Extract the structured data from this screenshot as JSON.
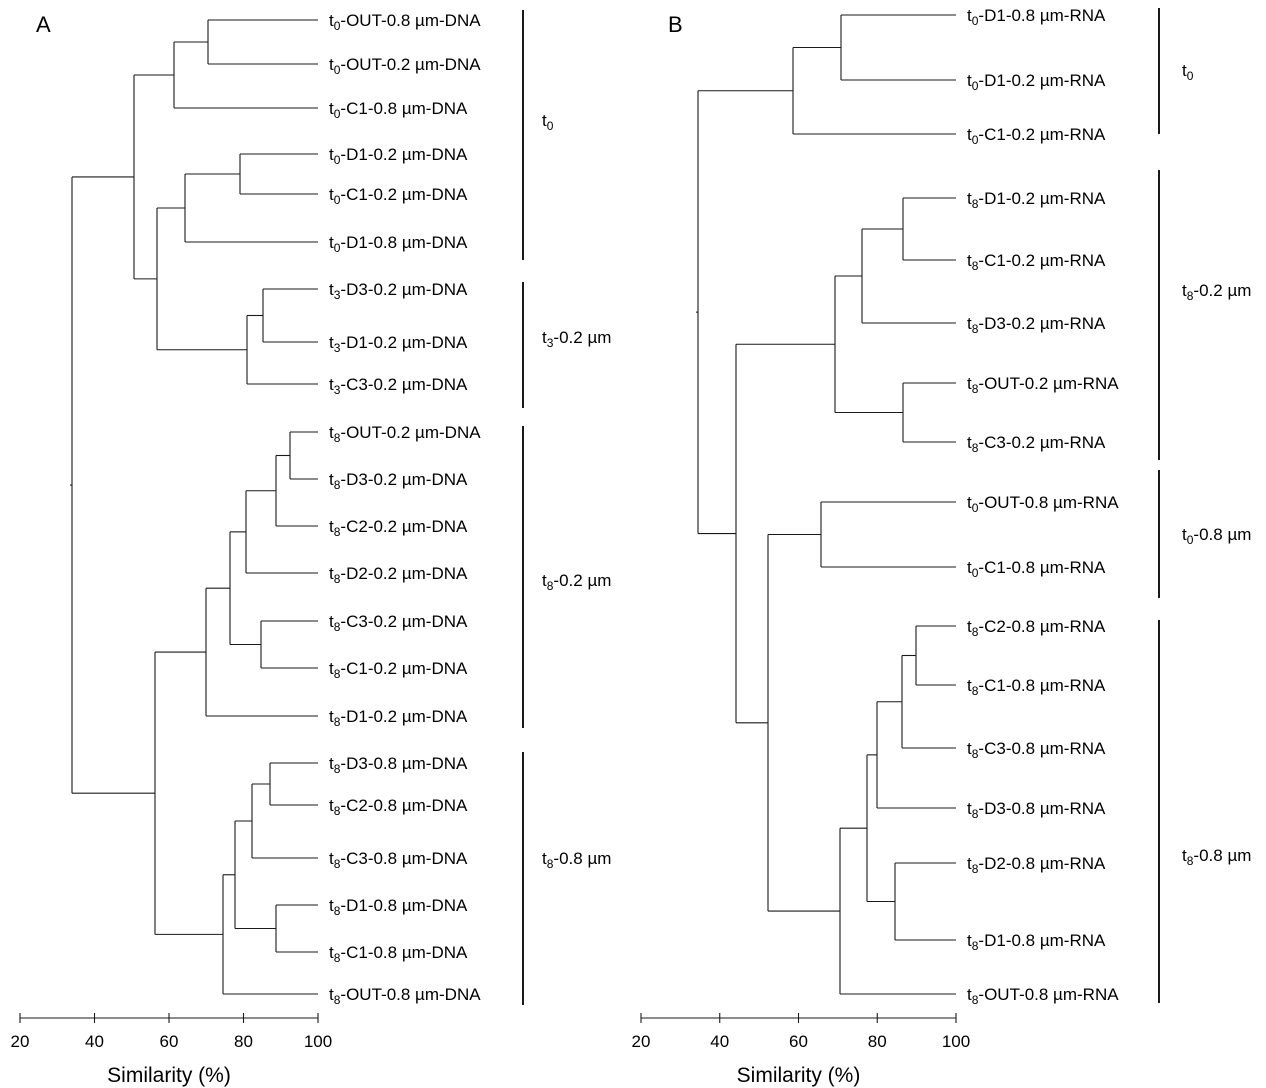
{
  "panels": [
    {
      "letter": "A",
      "leaves": [
        {
          "pre": "t",
          "sub": "0",
          "post": "-OUT-0.8 µm-DNA"
        },
        {
          "pre": "t",
          "sub": "0",
          "post": "-OUT-0.2 µm-DNA"
        },
        {
          "pre": "t",
          "sub": "0",
          "post": "-C1-0.8 µm-DNA"
        },
        {
          "pre": "t",
          "sub": "0",
          "post": "-D1-0.2 µm-DNA"
        },
        {
          "pre": "t",
          "sub": "0",
          "post": "-C1-0.2 µm-DNA"
        },
        {
          "pre": "t",
          "sub": "0",
          "post": "-D1-0.8 µm-DNA"
        },
        {
          "pre": "t",
          "sub": "3",
          "post": "-D3-0.2 µm-DNA"
        },
        {
          "pre": "t",
          "sub": "3",
          "post": "-D1-0.2 µm-DNA"
        },
        {
          "pre": "t",
          "sub": "3",
          "post": "-C3-0.2 µm-DNA"
        },
        {
          "pre": "t",
          "sub": "8",
          "post": "-OUT-0.2 µm-DNA"
        },
        {
          "pre": "t",
          "sub": "8",
          "post": "-D3-0.2 µm-DNA"
        },
        {
          "pre": "t",
          "sub": "8",
          "post": "-C2-0.2 µm-DNA"
        },
        {
          "pre": "t",
          "sub": "8",
          "post": "-D2-0.2 µm-DNA"
        },
        {
          "pre": "t",
          "sub": "8",
          "post": "-C3-0.2 µm-DNA"
        },
        {
          "pre": "t",
          "sub": "8",
          "post": "-C1-0.2 µm-DNA"
        },
        {
          "pre": "t",
          "sub": "8",
          "post": "-D1-0.2 µm-DNA"
        },
        {
          "pre": "t",
          "sub": "8",
          "post": "-D3-0.8 µm-DNA"
        },
        {
          "pre": "t",
          "sub": "8",
          "post": "-C2-0.8 µm-DNA"
        },
        {
          "pre": "t",
          "sub": "8",
          "post": "-C3-0.8 µm-DNA"
        },
        {
          "pre": "t",
          "sub": "8",
          "post": "-D1-0.8 µm-DNA"
        },
        {
          "pre": "t",
          "sub": "8",
          "post": "-C1-0.8 µm-DNA"
        },
        {
          "pre": "t",
          "sub": "8",
          "post": "-OUT-0.8 µm-DNA"
        }
      ],
      "groups": [
        {
          "pre": "t",
          "sub": "0",
          "post": ""
        },
        {
          "pre": "t",
          "sub": "3",
          "post": "-0.2 µm"
        },
        {
          "pre": "t",
          "sub": "8",
          "post": "-0.2 µm"
        },
        {
          "pre": "t",
          "sub": "8",
          "post": "-0.8 µm"
        }
      ]
    },
    {
      "letter": "B",
      "leaves": [
        {
          "pre": "t",
          "sub": "0",
          "post": "-D1-0.8 µm-RNA"
        },
        {
          "pre": "t",
          "sub": "0",
          "post": "-D1-0.2 µm-RNA"
        },
        {
          "pre": "t",
          "sub": "0",
          "post": "-C1-0.2 µm-RNA"
        },
        {
          "pre": "t",
          "sub": "8",
          "post": "-D1-0.2 µm-RNA"
        },
        {
          "pre": "t",
          "sub": "8",
          "post": "-C1-0.2 µm-RNA"
        },
        {
          "pre": "t",
          "sub": "8",
          "post": "-D3-0.2 µm-RNA"
        },
        {
          "pre": "t",
          "sub": "8",
          "post": "-OUT-0.2 µm-RNA"
        },
        {
          "pre": "t",
          "sub": "8",
          "post": "-C3-0.2 µm-RNA"
        },
        {
          "pre": "t",
          "sub": "0",
          "post": "-OUT-0.8 µm-RNA"
        },
        {
          "pre": "t",
          "sub": "0",
          "post": "-C1-0.8 µm-RNA"
        },
        {
          "pre": "t",
          "sub": "8",
          "post": "-C2-0.8 µm-RNA"
        },
        {
          "pre": "t",
          "sub": "8",
          "post": "-C1-0.8 µm-RNA"
        },
        {
          "pre": "t",
          "sub": "8",
          "post": "-C3-0.8 µm-RNA"
        },
        {
          "pre": "t",
          "sub": "8",
          "post": "-D3-0.8 µm-RNA"
        },
        {
          "pre": "t",
          "sub": "8",
          "post": "-D2-0.8 µm-RNA"
        },
        {
          "pre": "t",
          "sub": "8",
          "post": "-D1-0.8 µm-RNA"
        },
        {
          "pre": "t",
          "sub": "8",
          "post": "-OUT-0.8 µm-RNA"
        }
      ],
      "groups": [
        {
          "pre": "t",
          "sub": "0",
          "post": ""
        },
        {
          "pre": "t",
          "sub": "8",
          "post": "-0.2 µm"
        },
        {
          "pre": "t",
          "sub": "0",
          "post": "-0.8 µm"
        },
        {
          "pre": "t",
          "sub": "8",
          "post": "-0.8 µm"
        }
      ]
    }
  ],
  "axis": {
    "title": "Similarity (%)",
    "ticks": [
      "20",
      "40",
      "60",
      "80",
      "100"
    ]
  }
}
